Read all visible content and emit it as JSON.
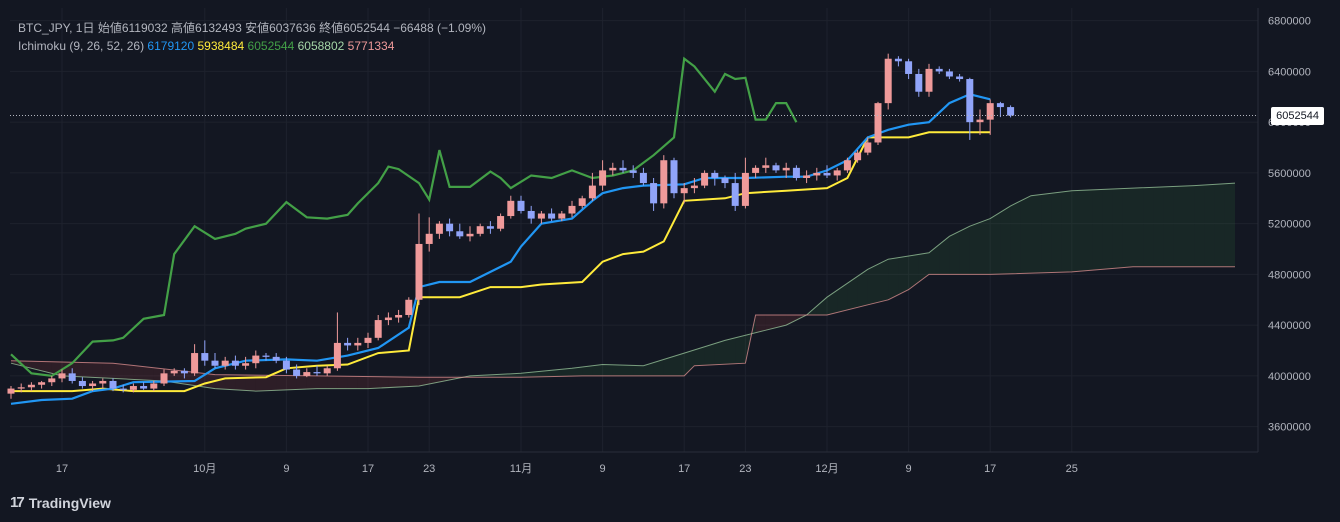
{
  "legend": {
    "symbol": "BTC_JPY, 1日",
    "open_label": "始値",
    "open": "6119032",
    "high_label": "高値",
    "high": "6132493",
    "low_label": "安値",
    "low": "6037636",
    "close_label": "終値",
    "close": "6052544",
    "change": "−66488 (−1.09%)",
    "ichimoku_label": "Ichimoku (9, 26, 52, 26)",
    "ichi_v1": "6179120",
    "ichi_v2": "5938484",
    "ichi_v3": "6052544",
    "ichi_v4": "6058802",
    "ichi_v5": "5771334"
  },
  "price_tag": "6052544",
  "brand": "TradingView",
  "colors": {
    "bg": "#131722",
    "up": "#ef9a9a",
    "down": "#90a4f9",
    "tenkan": "#2196f3",
    "kijun": "#ffeb3b",
    "chikou": "#43a047",
    "spanA": "#a5d6a7",
    "spanB": "#ef9a9a",
    "cloud_green": "rgba(67,160,71,0.12)",
    "cloud_red": "rgba(239,83,80,0.12)"
  },
  "chart_data": {
    "type": "candlestick",
    "ylim": [
      3400000,
      6900000
    ],
    "y_ticks": [
      3600000,
      4000000,
      4400000,
      4800000,
      5200000,
      5600000,
      6000000,
      6400000,
      6800000
    ],
    "y_tick_labels": [
      "3600000",
      "4000000",
      "4400000",
      "4800000",
      "5200000",
      "5600000",
      "6000000",
      "6400000",
      "6800000"
    ],
    "x_ticks": [
      {
        "label": "17",
        "idx": 5
      },
      {
        "label": "10月",
        "idx": 19
      },
      {
        "label": "9",
        "idx": 27
      },
      {
        "label": "17",
        "idx": 35
      },
      {
        "label": "23",
        "idx": 41
      },
      {
        "label": "11月",
        "idx": 50
      },
      {
        "label": "9",
        "idx": 58
      },
      {
        "label": "17",
        "idx": 66
      },
      {
        "label": "23",
        "idx": 72
      },
      {
        "label": "12月",
        "idx": 80
      },
      {
        "label": "9",
        "idx": 88
      },
      {
        "label": "17",
        "idx": 96
      },
      {
        "label": "25",
        "idx": 104
      }
    ],
    "last_close": 6052544,
    "candles": [
      [
        3860000,
        3920000,
        3820000,
        3900000
      ],
      [
        3900000,
        3940000,
        3870000,
        3910000
      ],
      [
        3910000,
        3950000,
        3880000,
        3930000
      ],
      [
        3930000,
        3960000,
        3900000,
        3950000
      ],
      [
        3950000,
        4000000,
        3920000,
        3980000
      ],
      [
        3980000,
        4050000,
        3950000,
        4020000
      ],
      [
        4020000,
        4060000,
        3940000,
        3960000
      ],
      [
        3960000,
        3990000,
        3900000,
        3920000
      ],
      [
        3920000,
        3960000,
        3880000,
        3940000
      ],
      [
        3940000,
        3980000,
        3900000,
        3960000
      ],
      [
        3960000,
        3980000,
        3880000,
        3900000
      ],
      [
        3900000,
        3930000,
        3870000,
        3890000
      ],
      [
        3890000,
        3940000,
        3870000,
        3920000
      ],
      [
        3920000,
        3950000,
        3890000,
        3900000
      ],
      [
        3900000,
        3960000,
        3880000,
        3940000
      ],
      [
        3940000,
        4050000,
        3920000,
        4020000
      ],
      [
        4020000,
        4060000,
        4000000,
        4040000
      ],
      [
        4040000,
        4060000,
        3980000,
        4020000
      ],
      [
        4020000,
        4250000,
        4000000,
        4180000
      ],
      [
        4180000,
        4280000,
        4080000,
        4120000
      ],
      [
        4120000,
        4180000,
        4060000,
        4080000
      ],
      [
        4080000,
        4150000,
        4050000,
        4120000
      ],
      [
        4120000,
        4160000,
        4050000,
        4080000
      ],
      [
        4080000,
        4150000,
        4050000,
        4100000
      ],
      [
        4100000,
        4200000,
        4060000,
        4160000
      ],
      [
        4160000,
        4180000,
        4120000,
        4150000
      ],
      [
        4150000,
        4180000,
        4100000,
        4120000
      ],
      [
        4120000,
        4150000,
        4020000,
        4050000
      ],
      [
        4050000,
        4090000,
        3980000,
        4000000
      ],
      [
        4000000,
        4060000,
        3990000,
        4030000
      ],
      [
        4030000,
        4080000,
        4000000,
        4020000
      ],
      [
        4020000,
        4080000,
        4000000,
        4060000
      ],
      [
        4060000,
        4500000,
        4040000,
        4260000
      ],
      [
        4260000,
        4300000,
        4200000,
        4240000
      ],
      [
        4240000,
        4300000,
        4200000,
        4260000
      ],
      [
        4260000,
        4340000,
        4220000,
        4300000
      ],
      [
        4300000,
        4480000,
        4280000,
        4440000
      ],
      [
        4440000,
        4500000,
        4400000,
        4460000
      ],
      [
        4460000,
        4520000,
        4420000,
        4480000
      ],
      [
        4480000,
        4620000,
        4460000,
        4600000
      ],
      [
        4600000,
        5280000,
        4560000,
        5040000
      ],
      [
        5040000,
        5250000,
        4980000,
        5120000
      ],
      [
        5120000,
        5220000,
        5080000,
        5200000
      ],
      [
        5200000,
        5240000,
        5100000,
        5140000
      ],
      [
        5140000,
        5200000,
        5080000,
        5100000
      ],
      [
        5100000,
        5180000,
        5060000,
        5120000
      ],
      [
        5120000,
        5200000,
        5100000,
        5180000
      ],
      [
        5180000,
        5220000,
        5120000,
        5160000
      ],
      [
        5160000,
        5280000,
        5140000,
        5260000
      ],
      [
        5260000,
        5420000,
        5240000,
        5380000
      ],
      [
        5380000,
        5420000,
        5280000,
        5300000
      ],
      [
        5300000,
        5340000,
        5200000,
        5240000
      ],
      [
        5240000,
        5300000,
        5200000,
        5280000
      ],
      [
        5280000,
        5320000,
        5220000,
        5240000
      ],
      [
        5240000,
        5300000,
        5220000,
        5280000
      ],
      [
        5280000,
        5380000,
        5250000,
        5340000
      ],
      [
        5340000,
        5420000,
        5320000,
        5400000
      ],
      [
        5400000,
        5600000,
        5380000,
        5500000
      ],
      [
        5500000,
        5700000,
        5460000,
        5620000
      ],
      [
        5620000,
        5680000,
        5580000,
        5640000
      ],
      [
        5640000,
        5700000,
        5600000,
        5620000
      ],
      [
        5620000,
        5660000,
        5560000,
        5600000
      ],
      [
        5600000,
        5640000,
        5500000,
        5520000
      ],
      [
        5520000,
        5560000,
        5300000,
        5360000
      ],
      [
        5360000,
        5740000,
        5320000,
        5700000
      ],
      [
        5700000,
        5720000,
        5400000,
        5440000
      ],
      [
        5440000,
        5520000,
        5360000,
        5480000
      ],
      [
        5480000,
        5560000,
        5440000,
        5500000
      ],
      [
        5500000,
        5620000,
        5480000,
        5600000
      ],
      [
        5600000,
        5620000,
        5500000,
        5560000
      ],
      [
        5560000,
        5580000,
        5480000,
        5520000
      ],
      [
        5520000,
        5600000,
        5300000,
        5340000
      ],
      [
        5340000,
        5720000,
        5320000,
        5600000
      ],
      [
        5600000,
        5660000,
        5560000,
        5640000
      ],
      [
        5640000,
        5720000,
        5600000,
        5660000
      ],
      [
        5660000,
        5680000,
        5600000,
        5620000
      ],
      [
        5620000,
        5680000,
        5560000,
        5640000
      ],
      [
        5640000,
        5660000,
        5540000,
        5560000
      ],
      [
        5560000,
        5620000,
        5520000,
        5580000
      ],
      [
        5580000,
        5640000,
        5540000,
        5600000
      ],
      [
        5600000,
        5660000,
        5560000,
        5580000
      ],
      [
        5580000,
        5640000,
        5540000,
        5620000
      ],
      [
        5620000,
        5720000,
        5600000,
        5700000
      ],
      [
        5700000,
        5780000,
        5680000,
        5760000
      ],
      [
        5760000,
        5880000,
        5740000,
        5840000
      ],
      [
        5840000,
        6160000,
        5820000,
        6150000
      ],
      [
        6150000,
        6540000,
        6100000,
        6500000
      ],
      [
        6500000,
        6520000,
        6440000,
        6480000
      ],
      [
        6480000,
        6500000,
        6340000,
        6380000
      ],
      [
        6380000,
        6420000,
        6200000,
        6240000
      ],
      [
        6240000,
        6460000,
        6200000,
        6420000
      ],
      [
        6420000,
        6440000,
        6380000,
        6400000
      ],
      [
        6400000,
        6420000,
        6340000,
        6360000
      ],
      [
        6360000,
        6380000,
        6320000,
        6340000
      ],
      [
        6340000,
        6350000,
        5860000,
        6000000
      ],
      [
        6000000,
        6100000,
        5900000,
        6020000
      ],
      [
        6020000,
        6180000,
        5900000,
        6150000
      ],
      [
        6150000,
        6160000,
        6040000,
        6119032
      ],
      [
        6119032,
        6132493,
        6037636,
        6052544
      ]
    ],
    "tenkan": [
      [
        0,
        3780000
      ],
      [
        3,
        3810000
      ],
      [
        6,
        3820000
      ],
      [
        8,
        3880000
      ],
      [
        10,
        3900000
      ],
      [
        12,
        3950000
      ],
      [
        18,
        3960000
      ],
      [
        20,
        4060000
      ],
      [
        23,
        4120000
      ],
      [
        27,
        4130000
      ],
      [
        30,
        4120000
      ],
      [
        33,
        4160000
      ],
      [
        36,
        4220000
      ],
      [
        39,
        4380000
      ],
      [
        40,
        4700000
      ],
      [
        42,
        4740000
      ],
      [
        45,
        4740000
      ],
      [
        47,
        4820000
      ],
      [
        49,
        4900000
      ],
      [
        50,
        5020000
      ],
      [
        52,
        5200000
      ],
      [
        55,
        5240000
      ],
      [
        57,
        5380000
      ],
      [
        58,
        5440000
      ],
      [
        60,
        5480000
      ],
      [
        62,
        5500000
      ],
      [
        66,
        5510000
      ],
      [
        68,
        5560000
      ],
      [
        72,
        5560000
      ],
      [
        76,
        5570000
      ],
      [
        78,
        5570000
      ],
      [
        80,
        5620000
      ],
      [
        82,
        5700000
      ],
      [
        84,
        5880000
      ],
      [
        86,
        5940000
      ],
      [
        88,
        5980000
      ],
      [
        90,
        6000000
      ],
      [
        92,
        6150000
      ],
      [
        94,
        6220000
      ],
      [
        96,
        6180000
      ]
    ],
    "kijun": [
      [
        0,
        3880000
      ],
      [
        6,
        3880000
      ],
      [
        9,
        3900000
      ],
      [
        12,
        3880000
      ],
      [
        17,
        3880000
      ],
      [
        19,
        3940000
      ],
      [
        21,
        3980000
      ],
      [
        25,
        3990000
      ],
      [
        27,
        4060000
      ],
      [
        30,
        4080000
      ],
      [
        33,
        4090000
      ],
      [
        36,
        4180000
      ],
      [
        39,
        4200000
      ],
      [
        40,
        4620000
      ],
      [
        44,
        4620000
      ],
      [
        47,
        4700000
      ],
      [
        50,
        4700000
      ],
      [
        52,
        4720000
      ],
      [
        56,
        4740000
      ],
      [
        58,
        4900000
      ],
      [
        60,
        4960000
      ],
      [
        62,
        4980000
      ],
      [
        64,
        5060000
      ],
      [
        66,
        5380000
      ],
      [
        70,
        5400000
      ],
      [
        72,
        5440000
      ],
      [
        76,
        5460000
      ],
      [
        80,
        5480000
      ],
      [
        82,
        5560000
      ],
      [
        84,
        5880000
      ],
      [
        88,
        5880000
      ],
      [
        90,
        5920000
      ],
      [
        96,
        5920000
      ]
    ],
    "chikou": [
      [
        0,
        4170000
      ],
      [
        2,
        4020000
      ],
      [
        4,
        4000000
      ],
      [
        6,
        4100000
      ],
      [
        8,
        4270000
      ],
      [
        10,
        4280000
      ],
      [
        11,
        4300000
      ],
      [
        13,
        4450000
      ],
      [
        15,
        4480000
      ],
      [
        16,
        4960000
      ],
      [
        18,
        5180000
      ],
      [
        20,
        5080000
      ],
      [
        22,
        5120000
      ],
      [
        23,
        5160000
      ],
      [
        25,
        5200000
      ],
      [
        27,
        5370000
      ],
      [
        29,
        5250000
      ],
      [
        31,
        5240000
      ],
      [
        33,
        5270000
      ],
      [
        34,
        5360000
      ],
      [
        36,
        5520000
      ],
      [
        37,
        5650000
      ],
      [
        38,
        5630000
      ],
      [
        40,
        5520000
      ],
      [
        41,
        5390000
      ],
      [
        42,
        5780000
      ],
      [
        43,
        5490000
      ],
      [
        45,
        5490000
      ],
      [
        47,
        5610000
      ],
      [
        48,
        5560000
      ],
      [
        49,
        5480000
      ],
      [
        51,
        5580000
      ],
      [
        53,
        5560000
      ],
      [
        55,
        5620000
      ],
      [
        57,
        5560000
      ],
      [
        59,
        5580000
      ],
      [
        61,
        5620000
      ],
      [
        63,
        5740000
      ],
      [
        65,
        5880000
      ],
      [
        66,
        6500000
      ],
      [
        67,
        6440000
      ],
      [
        69,
        6240000
      ],
      [
        70,
        6380000
      ],
      [
        71,
        6340000
      ],
      [
        72,
        6350000
      ],
      [
        73,
        6020000
      ],
      [
        74,
        6020000
      ],
      [
        75,
        6150000
      ],
      [
        76,
        6150000
      ],
      [
        77,
        6000000
      ]
    ],
    "span_a": [
      [
        0,
        4100000
      ],
      [
        5,
        4000000
      ],
      [
        10,
        3980000
      ],
      [
        15,
        3960000
      ],
      [
        20,
        3900000
      ],
      [
        24,
        3880000
      ],
      [
        30,
        3900000
      ],
      [
        35,
        3900000
      ],
      [
        40,
        3920000
      ],
      [
        45,
        4000000
      ],
      [
        50,
        4020000
      ],
      [
        55,
        4060000
      ],
      [
        58,
        4090000
      ],
      [
        62,
        4080000
      ],
      [
        66,
        4180000
      ],
      [
        70,
        4280000
      ],
      [
        74,
        4360000
      ],
      [
        76,
        4400000
      ],
      [
        78,
        4480000
      ],
      [
        80,
        4620000
      ],
      [
        84,
        4840000
      ],
      [
        86,
        4920000
      ],
      [
        90,
        4970000
      ],
      [
        92,
        5100000
      ],
      [
        94,
        5180000
      ],
      [
        96,
        5240000
      ],
      [
        98,
        5340000
      ],
      [
        100,
        5420000
      ],
      [
        104,
        5460000
      ],
      [
        110,
        5480000
      ],
      [
        116,
        5500000
      ],
      [
        120,
        5520000
      ]
    ],
    "span_b": [
      [
        0,
        4120000
      ],
      [
        10,
        4100000
      ],
      [
        20,
        4010000
      ],
      [
        30,
        4000000
      ],
      [
        40,
        3990000
      ],
      [
        50,
        3990000
      ],
      [
        56,
        4000000
      ],
      [
        66,
        4000000
      ],
      [
        67,
        4080000
      ],
      [
        72,
        4100000
      ],
      [
        73,
        4480000
      ],
      [
        80,
        4480000
      ],
      [
        84,
        4560000
      ],
      [
        86,
        4600000
      ],
      [
        88,
        4680000
      ],
      [
        90,
        4800000
      ],
      [
        96,
        4800000
      ],
      [
        104,
        4820000
      ],
      [
        110,
        4860000
      ],
      [
        120,
        4860000
      ]
    ]
  }
}
